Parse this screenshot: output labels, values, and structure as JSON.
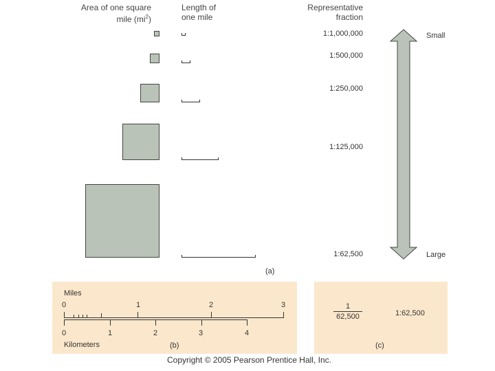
{
  "headers": {
    "area_line1": "Area of one square",
    "area_line2": "mile (mi",
    "area_sup": "2",
    "area_close": ")",
    "length_line1": "Length of",
    "length_line2": "one mile",
    "rf_line1": "Representative",
    "rf_line2": "fraction"
  },
  "scales": [
    {
      "fraction": "1:1,000,000"
    },
    {
      "fraction": "1:500,000"
    },
    {
      "fraction": "1:250,000"
    },
    {
      "fraction": "1:125,000"
    },
    {
      "fraction": "1:62,500"
    }
  ],
  "arrow": {
    "top_label": "Small",
    "bottom_label": "Large",
    "color": "#b9c3b7"
  },
  "labels": {
    "a": "(a)",
    "b": "(b)",
    "c": "(c)"
  },
  "panel_b": {
    "miles_label": "Miles",
    "miles_ticks": [
      "0",
      "1",
      "2",
      "3"
    ],
    "km_label": "Kilometers",
    "km_ticks": [
      "0",
      "1",
      "2",
      "3",
      "4"
    ]
  },
  "panel_c": {
    "numerator": "1",
    "denominator": "62,500",
    "ratio": "1:62,500"
  },
  "panel_color": "#fbe8cc",
  "copyright": "Copyright © 2005 Pearson Prentice Hall, Inc."
}
